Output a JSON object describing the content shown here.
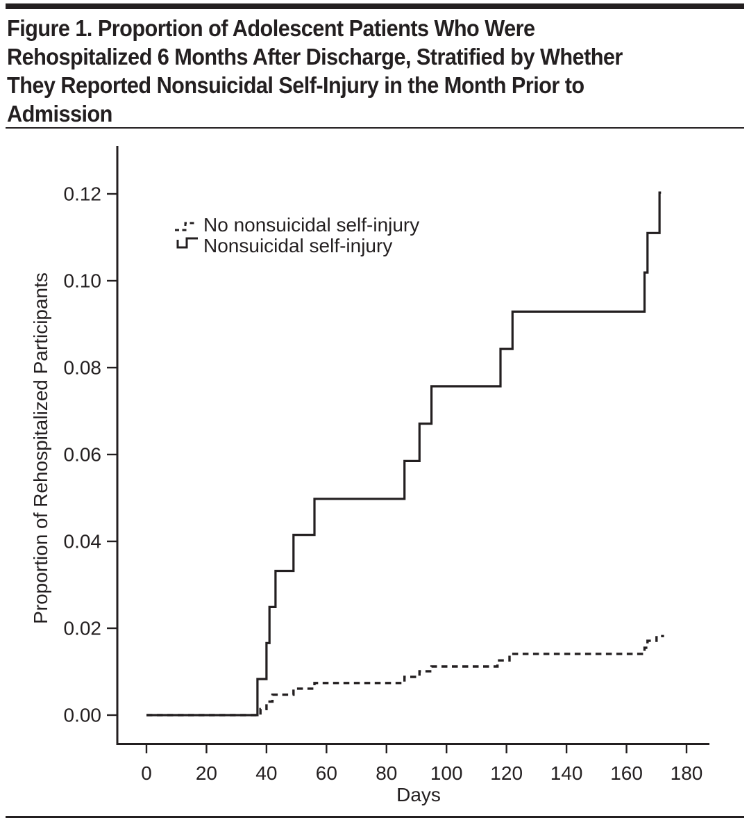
{
  "page": {
    "title_lines": [
      "Figure 1. Proportion of Adolescent Patients Who Were",
      "Rehospitalized 6 Months After Discharge, Stratified by Whether",
      "They Reported Nonsuicidal Self-Injury in the Month Prior to",
      "Admission"
    ]
  },
  "chart_data": {
    "type": "line",
    "subtype": "kaplan_meier_step",
    "title": "Figure 1. Proportion of Adolescent Patients Who Were Rehospitalized 6 Months After Discharge, Stratified by Whether They Reported Nonsuicidal Self-Injury in the Month Prior to Admission",
    "xlabel": "Days",
    "ylabel": "Proportion of Rehospitalized Participants",
    "xlim": [
      0,
      180
    ],
    "ylim": [
      0,
      0.13
    ],
    "x_ticks": [
      0,
      20,
      40,
      60,
      80,
      100,
      120,
      140,
      160,
      180
    ],
    "y_ticks": [
      "0.00",
      "0.02",
      "0.04",
      "0.06",
      "0.08",
      "0.10",
      "0.12"
    ],
    "grid": false,
    "legend_position": "upper_left_inside",
    "ink_color": "#231f20",
    "legend": [
      {
        "label": "No nonsuicidal self-injury",
        "style": "dashed"
      },
      {
        "label": "Nonsuicidal self-injury",
        "style": "solid"
      }
    ],
    "series": [
      {
        "name": "No nonsuicidal self-injury",
        "style": "dashed",
        "start": [
          0,
          0
        ],
        "steps": [
          [
            38,
            0.0014
          ],
          [
            40,
            0.0031
          ],
          [
            42,
            0.0047
          ],
          [
            49,
            0.0061
          ],
          [
            56,
            0.0074
          ],
          [
            86,
            0.0088
          ],
          [
            91,
            0.0101
          ],
          [
            95,
            0.0112
          ],
          [
            117,
            0.0126
          ],
          [
            121,
            0.0141
          ],
          [
            166,
            0.0155
          ],
          [
            167,
            0.0171
          ],
          [
            170,
            0.0182
          ]
        ],
        "end_x": 172.5
      },
      {
        "name": "Nonsuicidal self-injury",
        "style": "solid",
        "start": [
          0,
          0
        ],
        "steps": [
          [
            37,
            0.0083
          ],
          [
            40,
            0.0166
          ],
          [
            41,
            0.0249
          ],
          [
            43,
            0.0332
          ],
          [
            49,
            0.0415
          ],
          [
            56,
            0.0498
          ],
          [
            86,
            0.0585
          ],
          [
            91,
            0.0671
          ],
          [
            95,
            0.0757
          ],
          [
            118,
            0.0843
          ],
          [
            122,
            0.0929
          ],
          [
            166,
            0.1019
          ],
          [
            167,
            0.111
          ],
          [
            171,
            0.1203
          ]
        ],
        "end_x": 171.5
      }
    ]
  }
}
